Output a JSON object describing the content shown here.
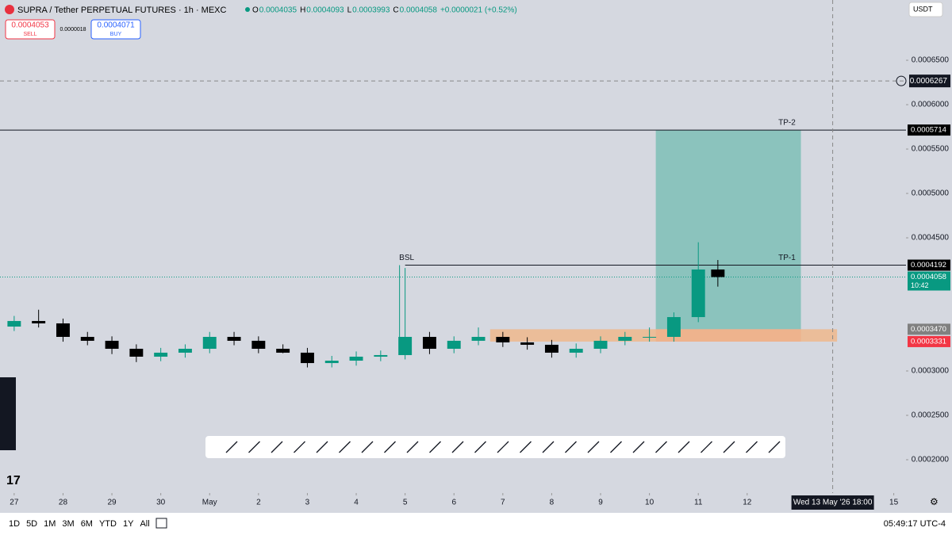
{
  "header": {
    "symbol": "SUPRA / Tether PERPETUAL FUTURES · 1h · MEXC",
    "ohlc": [
      {
        "key": "O",
        "value": "0.0004035"
      },
      {
        "key": "H",
        "value": "0.0004093"
      },
      {
        "key": "L",
        "value": "0.0003993"
      },
      {
        "key": "C",
        "value": "0.0004058"
      }
    ],
    "change": "+0.0000021 (+0.52%)",
    "sell": {
      "price": "0.0004053",
      "label": "SELL"
    },
    "spread": "0.0000018",
    "buy": {
      "price": "0.0004071",
      "label": "BUY"
    },
    "currency": "USDT"
  },
  "chart_data": {
    "type": "candlestick",
    "up_color": "#089981",
    "down_color": "#000000",
    "x": [
      0,
      0.5,
      1,
      1.5,
      2,
      2.5,
      3,
      3.5,
      4,
      4.5,
      5,
      5.5,
      6,
      6.5,
      7,
      7.5,
      8,
      8.5,
      9,
      9.5,
      10,
      10.5,
      11,
      11.5,
      12,
      12.5,
      13,
      13.5,
      14,
      14.4
    ],
    "open": [
      0.00035,
      0.0003563,
      0.0003536,
      0.0003384,
      0.000334,
      0.000325,
      0.0003161,
      0.0003206,
      0.000325,
      0.0003384,
      0.000334,
      0.000325,
      0.0003206,
      0.0003089,
      0.0003116,
      0.0003161,
      0.0003179,
      0.0003384,
      0.000325,
      0.000334,
      0.0003384,
      0.0003322,
      0.0003295,
      0.0003206,
      0.000325,
      0.000334,
      0.0003384,
      0.0003384,
      0.0003607,
      0.0004143
    ],
    "high": [
      0.000362,
      0.000369,
      0.000359,
      0.000344,
      0.000339,
      0.00033,
      0.000326,
      0.00033,
      0.000344,
      0.000344,
      0.000339,
      0.00033,
      0.000326,
      0.000317,
      0.000322,
      0.000323,
      0.000416,
      0.000344,
      0.000339,
      0.000349,
      0.000344,
      0.000338,
      0.000335,
      0.000331,
      0.000339,
      0.000344,
      0.000349,
      0.000366,
      0.000445,
      0.000425
    ],
    "low": [
      0.000345,
      0.000349,
      0.000333,
      0.000329,
      0.000319,
      0.00031,
      0.000311,
      0.000315,
      0.00032,
      0.000329,
      0.00032,
      0.00032,
      0.000304,
      0.000304,
      0.000306,
      0.000311,
      0.000313,
      0.000319,
      0.00032,
      0.000329,
      0.000327,
      0.000324,
      0.000315,
      0.000315,
      0.00032,
      0.000329,
      0.000333,
      0.000333,
      0.000355,
      0.000395
    ],
    "close": [
      0.0003563,
      0.0003536,
      0.0003384,
      0.000334,
      0.000325,
      0.0003161,
      0.0003206,
      0.000325,
      0.0003384,
      0.000334,
      0.000325,
      0.0003206,
      0.0003089,
      0.0003116,
      0.0003161,
      0.0003179,
      0.0003384,
      0.000325,
      0.000334,
      0.0003384,
      0.0003322,
      0.0003295,
      0.0003206,
      0.000325,
      0.000334,
      0.0003384,
      0.0003384,
      0.0003607,
      0.0004143,
      0.0004058
    ],
    "xlim": [
      -0.29,
      18.25
    ],
    "xticks": [
      {
        "value": 0,
        "label": "27"
      },
      {
        "value": 1,
        "label": "28"
      },
      {
        "value": 2,
        "label": "29"
      },
      {
        "value": 3,
        "label": "30"
      },
      {
        "value": 4,
        "label": "May"
      },
      {
        "value": 5,
        "label": "2"
      },
      {
        "value": 6,
        "label": "3"
      },
      {
        "value": 7,
        "label": "4"
      },
      {
        "value": 8,
        "label": "5"
      },
      {
        "value": 9,
        "label": "6"
      },
      {
        "value": 10,
        "label": "7"
      },
      {
        "value": 11,
        "label": "8"
      },
      {
        "value": 12,
        "label": "9"
      },
      {
        "value": 13,
        "label": "10"
      },
      {
        "value": 14,
        "label": "11"
      },
      {
        "value": 15,
        "label": "12"
      },
      {
        "value": 18,
        "label": "15"
      }
    ],
    "ylim": [
      0.0001625,
      0.0007179
    ],
    "yticks": [
      {
        "value": 0.0002,
        "label": "0.0002000"
      },
      {
        "value": 0.00025,
        "label": "0.0002500"
      },
      {
        "value": 0.0003,
        "label": "0.0003000"
      },
      {
        "value": 0.00045,
        "label": "0.0004500"
      },
      {
        "value": 0.0005,
        "label": "0.0005000"
      },
      {
        "value": 0.00055,
        "label": "0.0005500"
      },
      {
        "value": 0.0006,
        "label": "0.0006000"
      },
      {
        "value": 0.00065,
        "label": "0.0006500"
      }
    ],
    "levels": [
      {
        "name": "TP-2",
        "price": 0.0005714,
        "start": -0.29
      },
      {
        "name": "TP-1",
        "price": 0.0004192,
        "start": 8
      }
    ],
    "bsl": {
      "name": "BSL",
      "price": 0.0004192,
      "x": 8
    },
    "zones": [
      {
        "top": 0.0005714,
        "bottom": 0.000347,
        "start": 13.13,
        "end": 16.1,
        "color": "#7ebfb6"
      },
      {
        "top": 0.000347,
        "bottom": 0.0003331,
        "start": 13.13,
        "end": 16.1,
        "color": "#ef8a85"
      },
      {
        "top": 0.000347,
        "bottom": 0.0003331,
        "start": 9.74,
        "end": 16.84,
        "color": "#eeb98c"
      }
    ],
    "price_labels": [
      {
        "value": 0.0005714,
        "label": "0.0005714",
        "color": "#000000"
      },
      {
        "value": 0.0004192,
        "label": "0.0004192",
        "color": "#000000"
      },
      {
        "value": 0.0004058,
        "label": "0.0004058",
        "color": "#089981",
        "countdown": "10:42"
      },
      {
        "value": 0.000347,
        "label": "0.0003470",
        "color": "#808080"
      },
      {
        "value": 0.0003331,
        "label": "0.0003331",
        "color": "#f23645"
      }
    ],
    "crosshair": {
      "x": 16.75,
      "x_label": "Wed 13 May '26   18:00",
      "price": {
        "value": 0.0006267,
        "label": "0.0006267"
      }
    }
  },
  "footer": {
    "periods": [
      "1D",
      "5D",
      "1M",
      "3M",
      "6M",
      "YTD",
      "1Y",
      "All"
    ],
    "time": "05:49:17 UTC-4"
  }
}
